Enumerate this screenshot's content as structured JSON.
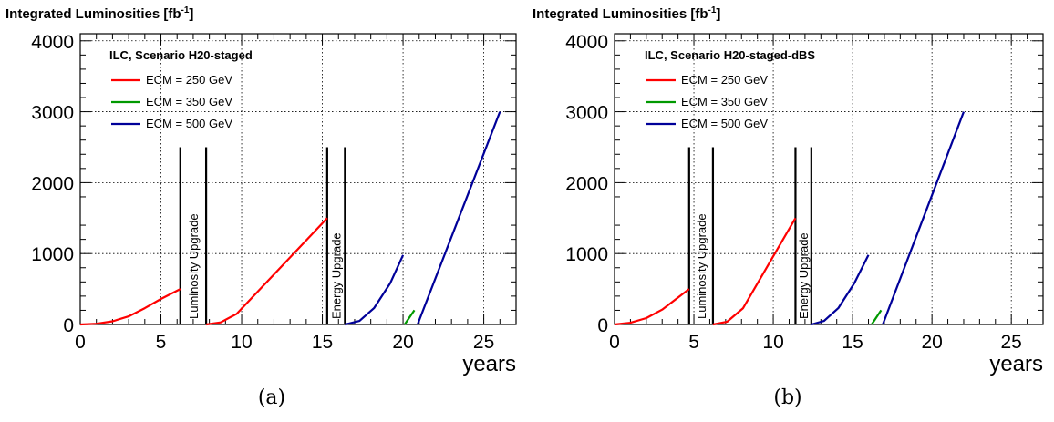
{
  "chart_data": [
    {
      "type": "line",
      "ylabel": "Integrated Luminosities",
      "yunit": "[fb",
      "yunit_exp": "-1",
      "yunit_close": "]",
      "xlabel": "years",
      "xlim": [
        0,
        27
      ],
      "ylim": [
        0,
        4100
      ],
      "xticks": [
        0,
        5,
        10,
        15,
        20,
        25
      ],
      "yticks": [
        0,
        1000,
        2000,
        3000,
        4000
      ],
      "grid": true,
      "legend_title": "ILC, Scenario H20-staged",
      "legend_placement": "top-left",
      "series": [
        {
          "name": "ECM = 250 GeV",
          "color": "#ff0000",
          "segments": [
            {
              "x": [
                0,
                1,
                2,
                3,
                4,
                5,
                6.2
              ],
              "y": [
                0,
                10,
                45,
                115,
                230,
                360,
                500
              ]
            },
            {
              "x": [
                7.8,
                8.7,
                9.7,
                15.3
              ],
              "y": [
                0,
                30,
                150,
                1500
              ]
            }
          ]
        },
        {
          "name": "ECM = 350 GeV",
          "color": "#009900",
          "segments": [
            {
              "x": [
                20.1,
                20.7
              ],
              "y": [
                0,
                200
              ]
            }
          ]
        },
        {
          "name": "ECM = 500 GeV",
          "color": "#000099",
          "segments": [
            {
              "x": [
                16.4,
                17.3,
                18.2,
                19.2,
                20.0
              ],
              "y": [
                0,
                50,
                230,
                580,
                980
              ]
            },
            {
              "x": [
                20.9,
                26.0
              ],
              "y": [
                0,
                3000
              ]
            }
          ]
        }
      ],
      "upgrades": [
        {
          "label": "Luminosity Upgrade",
          "x1": 6.2,
          "x2": 7.8,
          "ytop": 2500
        },
        {
          "label": "Energy Upgrade",
          "x1": 15.3,
          "x2": 16.4,
          "ytop": 2500
        }
      ]
    },
    {
      "type": "line",
      "ylabel": "Integrated Luminosities",
      "yunit": "[fb",
      "yunit_exp": "-1",
      "yunit_close": "]",
      "xlabel": "years",
      "xlim": [
        0,
        27
      ],
      "ylim": [
        0,
        4100
      ],
      "xticks": [
        0,
        5,
        10,
        15,
        20,
        25
      ],
      "yticks": [
        0,
        1000,
        2000,
        3000,
        4000
      ],
      "grid": true,
      "legend_title": "ILC, Scenario H20-staged-dBS",
      "legend_placement": "top-left",
      "series": [
        {
          "name": "ECM = 250 GeV",
          "color": "#ff0000",
          "segments": [
            {
              "x": [
                0,
                1,
                2,
                3,
                4.7
              ],
              "y": [
                0,
                25,
                90,
                210,
                500
              ]
            },
            {
              "x": [
                6.2,
                7.1,
                8.1,
                11.4
              ],
              "y": [
                0,
                40,
                230,
                1500
              ]
            }
          ]
        },
        {
          "name": "ECM = 350 GeV",
          "color": "#009900",
          "segments": [
            {
              "x": [
                16.2,
                16.8
              ],
              "y": [
                0,
                200
              ]
            }
          ]
        },
        {
          "name": "ECM = 500 GeV",
          "color": "#000099",
          "segments": [
            {
              "x": [
                12.4,
                13.2,
                14.1,
                15.1,
                16.0
              ],
              "y": [
                0,
                50,
                230,
                580,
                980
              ]
            },
            {
              "x": [
                16.9,
                22.0
              ],
              "y": [
                0,
                3000
              ]
            }
          ]
        }
      ],
      "upgrades": [
        {
          "label": "Luminosity Upgrade",
          "x1": 4.7,
          "x2": 6.2,
          "ytop": 2500
        },
        {
          "label": "Energy Upgrade",
          "x1": 11.4,
          "x2": 12.4,
          "ytop": 2500
        }
      ]
    }
  ],
  "captions": [
    "(a)",
    "(b)"
  ]
}
